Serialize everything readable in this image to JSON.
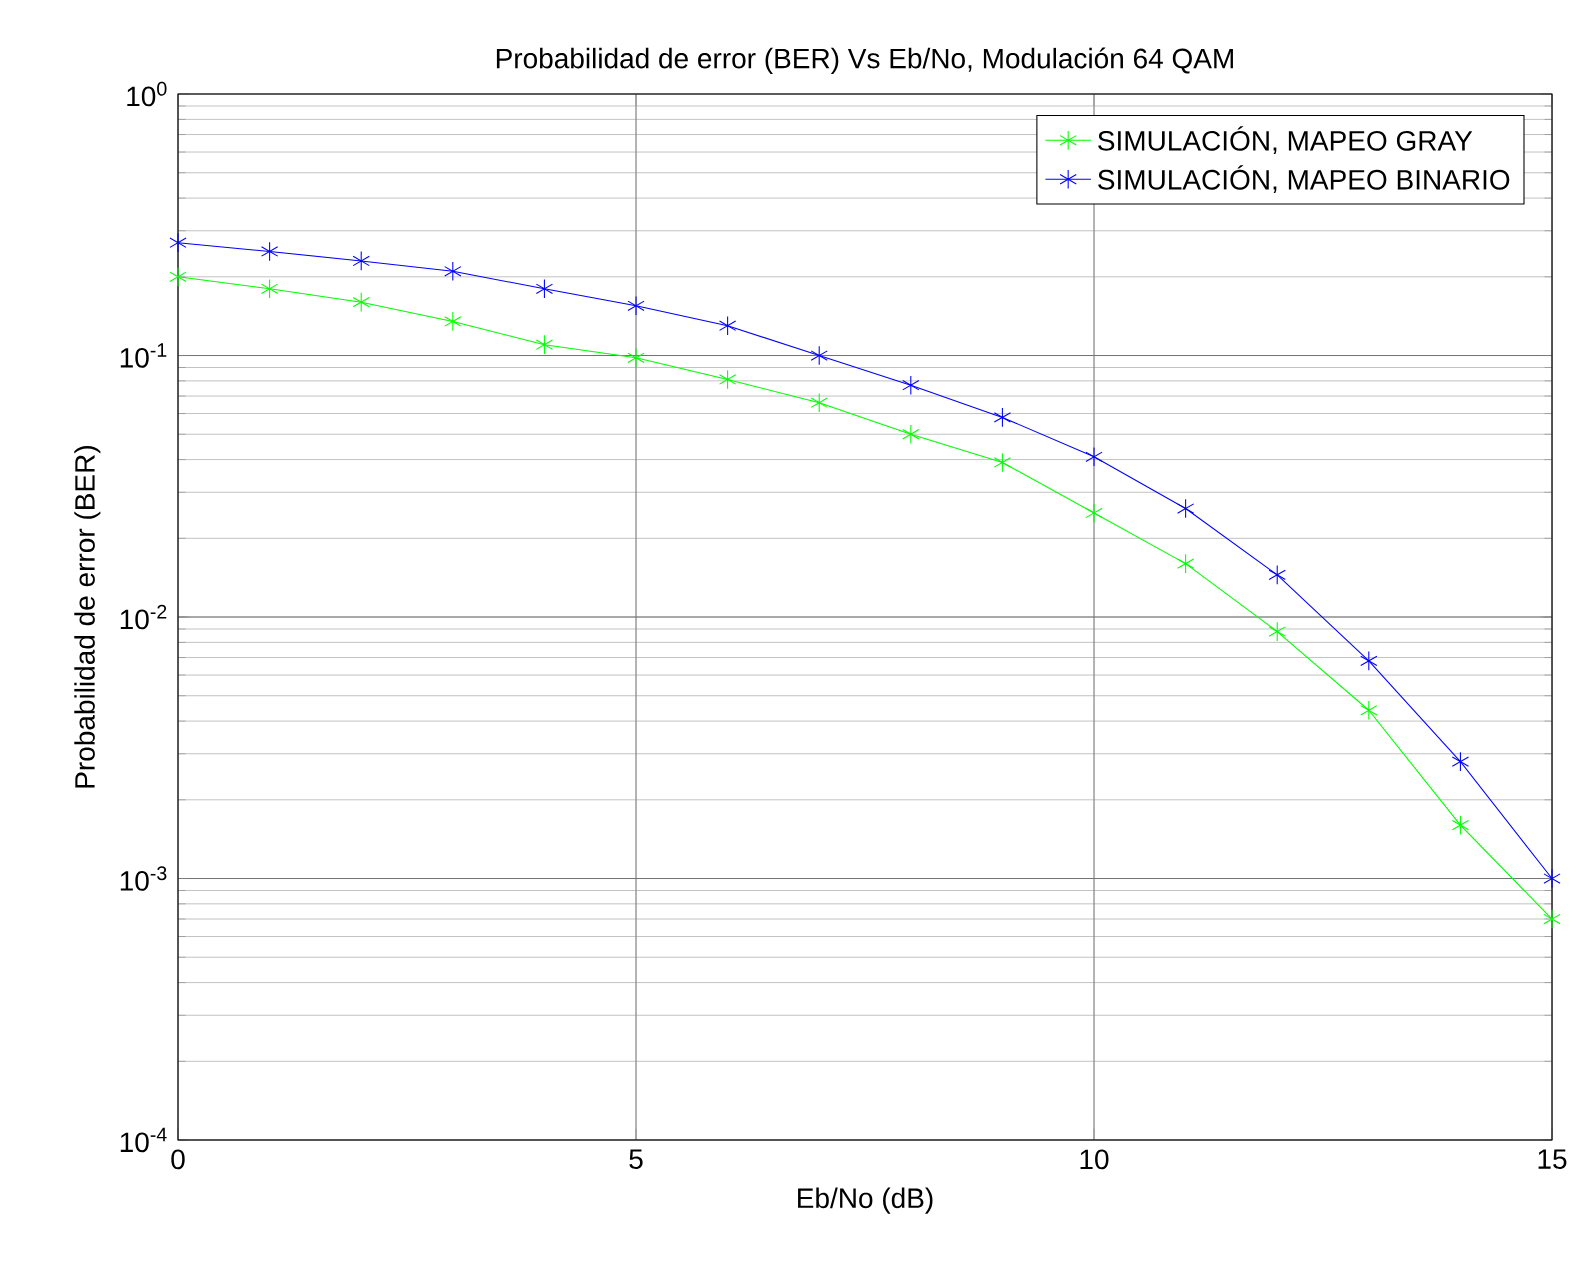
{
  "chart_data": {
    "type": "line",
    "title": "Probabilidad de error (BER)  Vs  Eb/No,  Modulación 64 QAM",
    "xlabel": "Eb/No (dB)",
    "ylabel": "Probabilidad de error (BER)",
    "x": [
      0,
      1,
      2,
      3,
      4,
      5,
      6,
      7,
      8,
      9,
      10,
      11,
      12,
      13,
      14,
      15
    ],
    "series": [
      {
        "name": "SIMULACIÓN, MAPEO GRAY",
        "color": "#00ff00",
        "values": [
          0.2,
          0.18,
          0.16,
          0.135,
          0.11,
          0.098,
          0.081,
          0.066,
          0.05,
          0.039,
          0.025,
          0.016,
          0.0088,
          0.0044,
          0.0016,
          0.0007
        ]
      },
      {
        "name": "SIMULACIÓN, MAPEO BINARIO",
        "color": "#0000ff",
        "values": [
          0.27,
          0.25,
          0.23,
          0.21,
          0.18,
          0.155,
          0.13,
          0.1,
          0.077,
          0.058,
          0.041,
          0.026,
          0.0145,
          0.0068,
          0.0028,
          0.001
        ]
      }
    ],
    "xlim": [
      0,
      15
    ],
    "ylim": [
      0.0001,
      1
    ],
    "xticks": [
      0,
      5,
      10,
      15
    ],
    "yticks": [
      {
        "value": 0.0001,
        "label": "10$^{-4}$"
      },
      {
        "value": 0.001,
        "label": "10$^{-3}$"
      },
      {
        "value": 0.01,
        "label": "10$^{-2}$"
      },
      {
        "value": 0.1,
        "label": "10$^{-1}$"
      },
      {
        "value": 1,
        "label": "10$^{0}$"
      }
    ],
    "log": "y",
    "grid": true,
    "legend": "top right",
    "marker": "cross",
    "line_style": "solid"
  }
}
